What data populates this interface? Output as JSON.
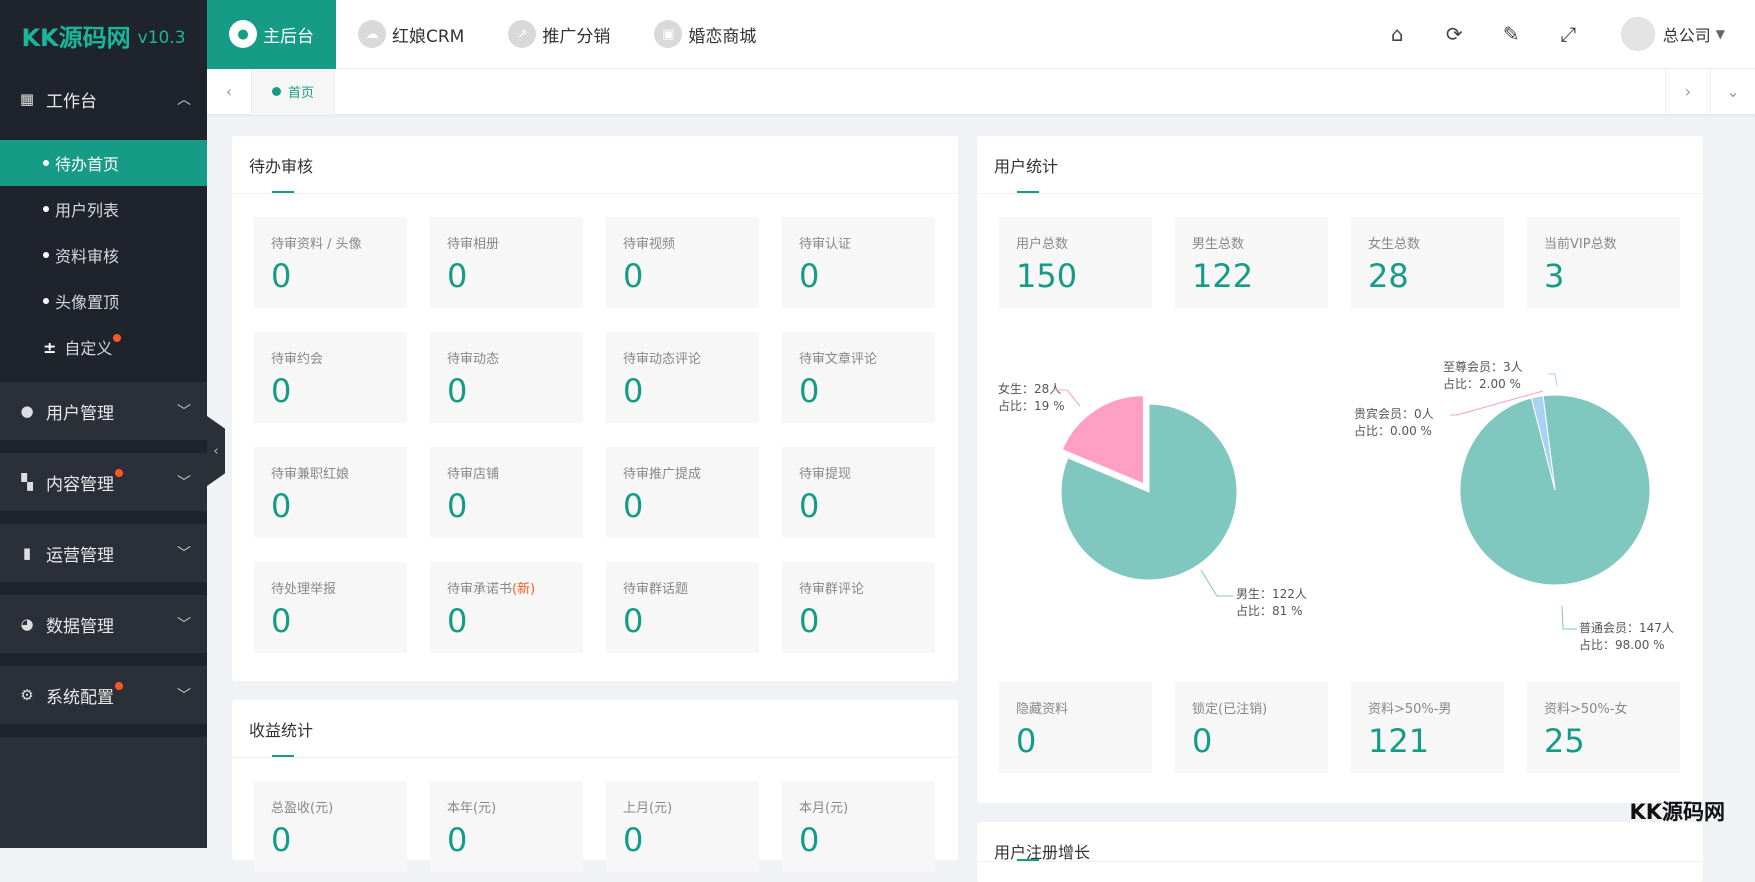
{
  "logo": {
    "brand": "KK源码网",
    "version": "v10.3"
  },
  "sidebar": {
    "workbench": "工作台",
    "sub_items": [
      {
        "label": "待办首页",
        "active": true
      },
      {
        "label": "用户列表"
      },
      {
        "label": "资料审核"
      },
      {
        "label": "头像置顶"
      },
      {
        "label": "自定义"
      }
    ],
    "groups": [
      {
        "label": "用户管理"
      },
      {
        "label": "内容管理"
      },
      {
        "label": "运营管理"
      },
      {
        "label": "数据管理"
      },
      {
        "label": "系统配置"
      }
    ],
    "badge_color": "#ff5722"
  },
  "topbar": {
    "tabs": [
      {
        "label": "主后台",
        "active": true
      },
      {
        "label": "红娘CRM"
      },
      {
        "label": "推广分销"
      },
      {
        "label": "婚恋商城"
      }
    ],
    "user": "总公司"
  },
  "tabstrip": {
    "home": "首页"
  },
  "pending": {
    "title": "待办审核",
    "items": [
      {
        "label": "待审资料 / 头像",
        "value": "0"
      },
      {
        "label": "待审相册",
        "value": "0"
      },
      {
        "label": "待审视频",
        "value": "0"
      },
      {
        "label": "待审认证",
        "value": "0"
      },
      {
        "label": "待审约会",
        "value": "0"
      },
      {
        "label": "待审动态",
        "value": "0"
      },
      {
        "label": "待审动态评论",
        "value": "0"
      },
      {
        "label": "待审文章评论",
        "value": "0"
      },
      {
        "label": "待审兼职红娘",
        "value": "0"
      },
      {
        "label": "待审店铺",
        "value": "0"
      },
      {
        "label": "待审推广提成",
        "value": "0"
      },
      {
        "label": "待审提现",
        "value": "0"
      },
      {
        "label": "待处理举报",
        "value": "0"
      },
      {
        "label": "待审承诺书",
        "new": "(新)",
        "value": "0"
      },
      {
        "label": "待审群话题",
        "value": "0"
      },
      {
        "label": "待审群评论",
        "value": "0"
      }
    ]
  },
  "revenue": {
    "title": "收益统计",
    "items": [
      {
        "label": "总盈收(元)",
        "value": "0"
      },
      {
        "label": "本年(元)",
        "value": "0"
      },
      {
        "label": "上月(元)",
        "value": "0"
      },
      {
        "label": "本月(元)",
        "value": "0"
      }
    ]
  },
  "user_stats": {
    "title": "用户统计",
    "top": [
      {
        "label": "用户总数",
        "value": "150"
      },
      {
        "label": "男生总数",
        "value": "122"
      },
      {
        "label": "女生总数",
        "value": "28"
      },
      {
        "label": "当前VIP总数",
        "value": "3"
      }
    ],
    "bottom": [
      {
        "label": "隐藏资料",
        "value": "0"
      },
      {
        "label": "锁定(已注销)",
        "value": "0"
      },
      {
        "label": "资料>50%-男",
        "value": "121"
      },
      {
        "label": "资料>50%-女",
        "value": "25"
      }
    ],
    "pie_gender": {
      "female_label": "女生：28人",
      "female_pct": "占比：19 %",
      "male_label": "男生：122人",
      "male_pct": "占比：81 %"
    },
    "pie_member": {
      "supreme_label": "至尊会员：3人",
      "supreme_pct": "占比：2.00 %",
      "vip_label": "贵宾会员：0人",
      "vip_pct": "占比：0.00 %",
      "normal_label": "普通会员：147人",
      "normal_pct": "占比：98.00 %"
    }
  },
  "next_card_title": "用户注册增长",
  "watermark": "KK源码网",
  "chart_data": [
    {
      "type": "pie",
      "categories": [
        "男生",
        "女生"
      ],
      "values": [
        122,
        28
      ],
      "colors": [
        "#7fc7bf",
        "#ff9fc4"
      ]
    },
    {
      "type": "pie",
      "categories": [
        "普通会员",
        "至尊会员",
        "贵宾会员"
      ],
      "values": [
        147,
        3,
        0
      ],
      "colors": [
        "#7fc7bf",
        "#a9d2f2",
        "#f4a3b8"
      ]
    }
  ]
}
